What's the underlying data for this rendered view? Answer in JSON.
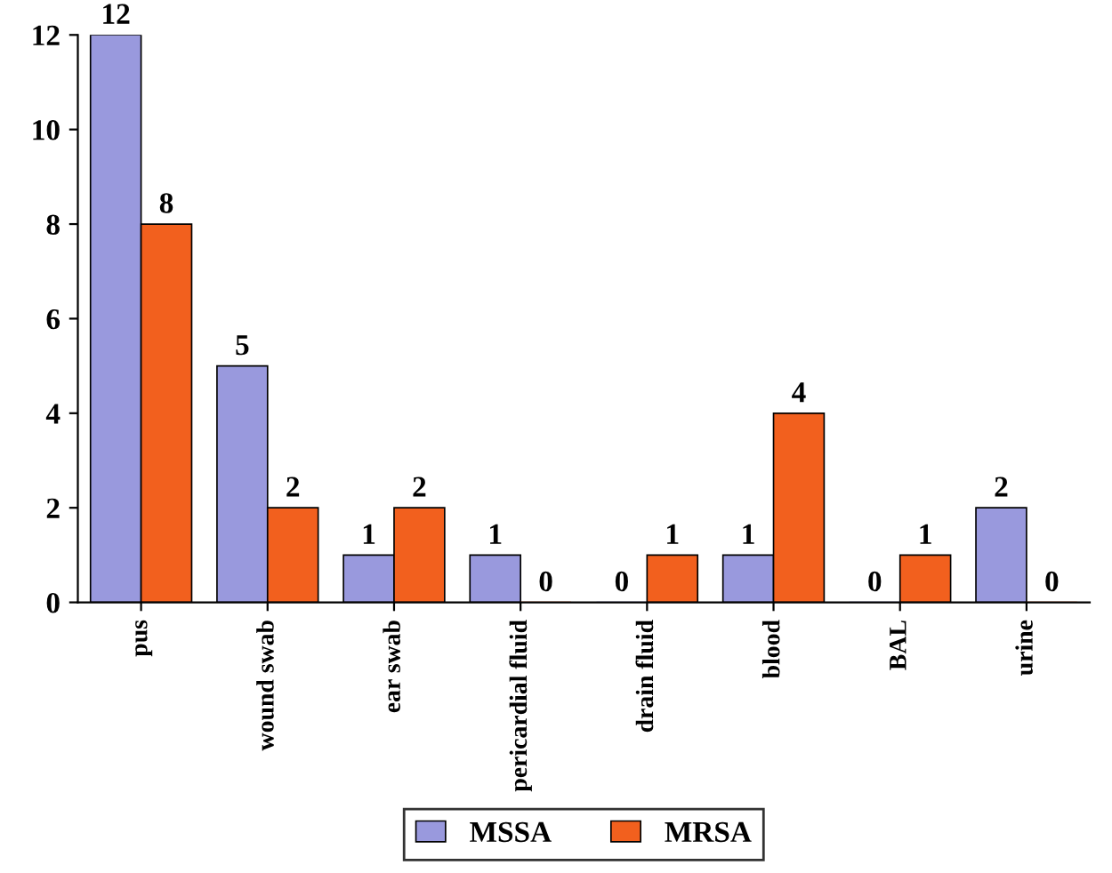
{
  "chart_data": {
    "type": "bar",
    "categories": [
      "pus",
      "wound swab",
      "ear swab",
      "pericardial fluid",
      "drain fluid",
      "blood",
      "BAL",
      "urine"
    ],
    "series": [
      {
        "name": "MSSA",
        "color": "#9999dd",
        "values": [
          12,
          5,
          1,
          1,
          0,
          1,
          0,
          2
        ]
      },
      {
        "name": "MRSA",
        "color": "#f2601e",
        "values": [
          8,
          2,
          2,
          0,
          1,
          4,
          1,
          0
        ]
      }
    ],
    "ylim": [
      0,
      12
    ],
    "yticks": [
      0,
      2,
      4,
      6,
      8,
      10,
      12
    ],
    "data_labels": true,
    "legend": "bottom",
    "grid": false
  }
}
